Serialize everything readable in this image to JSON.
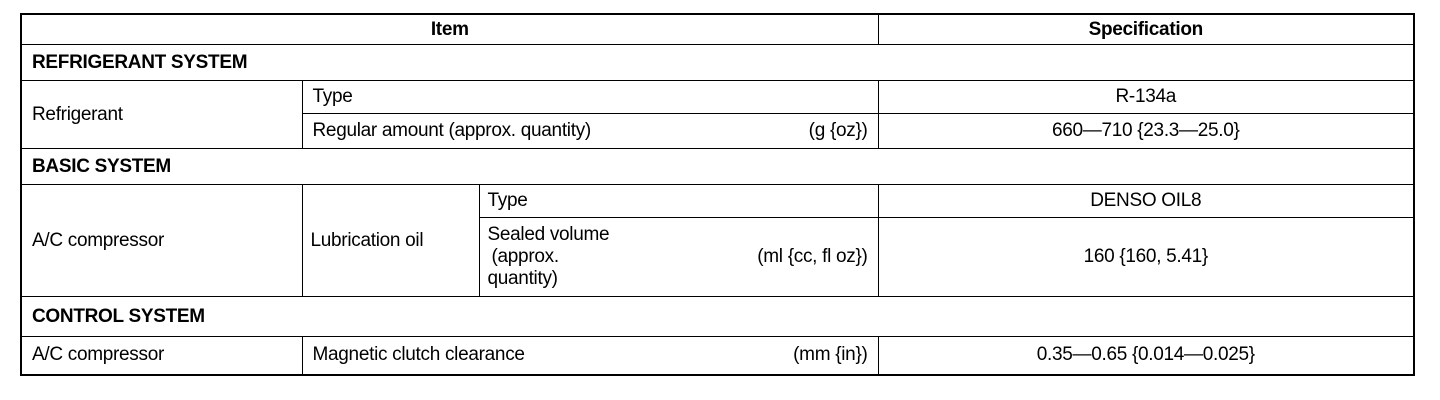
{
  "header": {
    "item": "Item",
    "specification": "Specification"
  },
  "sections": [
    {
      "title": "REFRIGERANT SYSTEM",
      "component": "Refrigerant",
      "rows": [
        {
          "item": "Type",
          "unit": "",
          "spec": "R-134a"
        },
        {
          "item": "Regular amount (approx. quantity)",
          "unit": "(g {oz})",
          "spec": "660—710 {23.3—25.0}"
        }
      ]
    },
    {
      "title": "BASIC SYSTEM",
      "component": "A/C compressor",
      "subcomponent": "Lubrication oil",
      "rows": [
        {
          "item": "Type",
          "unit": "",
          "spec": "DENSO OIL8"
        },
        {
          "item_line1": "Sealed volume",
          "item_line2": "(approx.",
          "item_line3": "quantity)",
          "unit": "(ml {cc, fl oz})",
          "spec": "160 {160, 5.41}"
        }
      ]
    },
    {
      "title": "CONTROL SYSTEM",
      "component": "A/C compressor",
      "rows": [
        {
          "item": "Magnetic clutch clearance",
          "unit": "(mm {in})",
          "spec": "0.35—0.65 {0.014—0.025}"
        }
      ]
    }
  ]
}
